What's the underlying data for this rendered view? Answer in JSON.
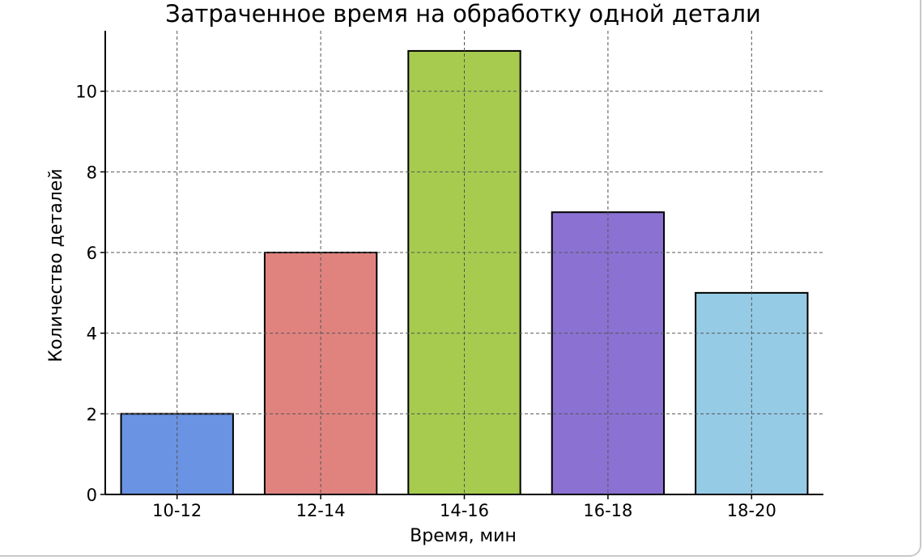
{
  "chart_data": {
    "type": "bar",
    "title": "Затраченное время на обработку одной детали",
    "xlabel": "Время, мин",
    "ylabel": "Количество деталей",
    "categories": [
      "10-12",
      "12-14",
      "14-16",
      "16-18",
      "18-20"
    ],
    "values": [
      2,
      6,
      11,
      7,
      5
    ],
    "colors": [
      "#6a93e3",
      "#e0837f",
      "#a6cb4f",
      "#8b71d2",
      "#96cbe6"
    ],
    "edge_color": "#000000",
    "ylim": [
      0,
      11.5
    ],
    "yticks": [
      0,
      2,
      4,
      6,
      8,
      10
    ],
    "grid": true,
    "grid_style": "dashed"
  }
}
